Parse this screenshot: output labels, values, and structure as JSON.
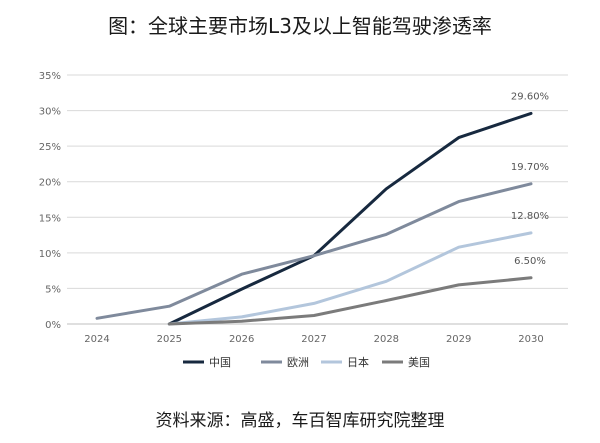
{
  "header": {
    "title": "图：全球主要市场L3及以上智能驾驶渗透率"
  },
  "footer": {
    "source": "资料来源：高盛，车百智库研究院整理"
  },
  "chart_data": {
    "type": "line",
    "title": "图：全球主要市场L3及以上智能驾驶渗透率",
    "xlabel": "",
    "ylabel": "",
    "x": [
      "2024",
      "2025",
      "2026",
      "2027",
      "2028",
      "2029",
      "2030"
    ],
    "ylim": [
      0,
      35
    ],
    "yticks": [
      "0%",
      "5%",
      "10%",
      "15%",
      "20%",
      "25%",
      "30%",
      "35%"
    ],
    "grid": true,
    "legend_position": "bottom",
    "series": [
      {
        "name": "中国",
        "color": "#17293f",
        "values": [
          null,
          0,
          4.9,
          9.6,
          19.0,
          26.2,
          29.6
        ]
      },
      {
        "name": "欧洲",
        "color": "#7f8a9c",
        "values": [
          0.8,
          2.5,
          7.0,
          9.6,
          12.6,
          17.2,
          19.7
        ]
      },
      {
        "name": "日本",
        "color": "#b3c6dc",
        "values": [
          null,
          0,
          1.0,
          2.9,
          6.0,
          10.8,
          12.8
        ]
      },
      {
        "name": "美国",
        "color": "#7b7b7b",
        "values": [
          null,
          0,
          0.4,
          1.2,
          3.3,
          5.5,
          6.5
        ]
      }
    ],
    "annotations": [
      "29.60%",
      "19.70%",
      "12.80%",
      "6.50%"
    ]
  }
}
